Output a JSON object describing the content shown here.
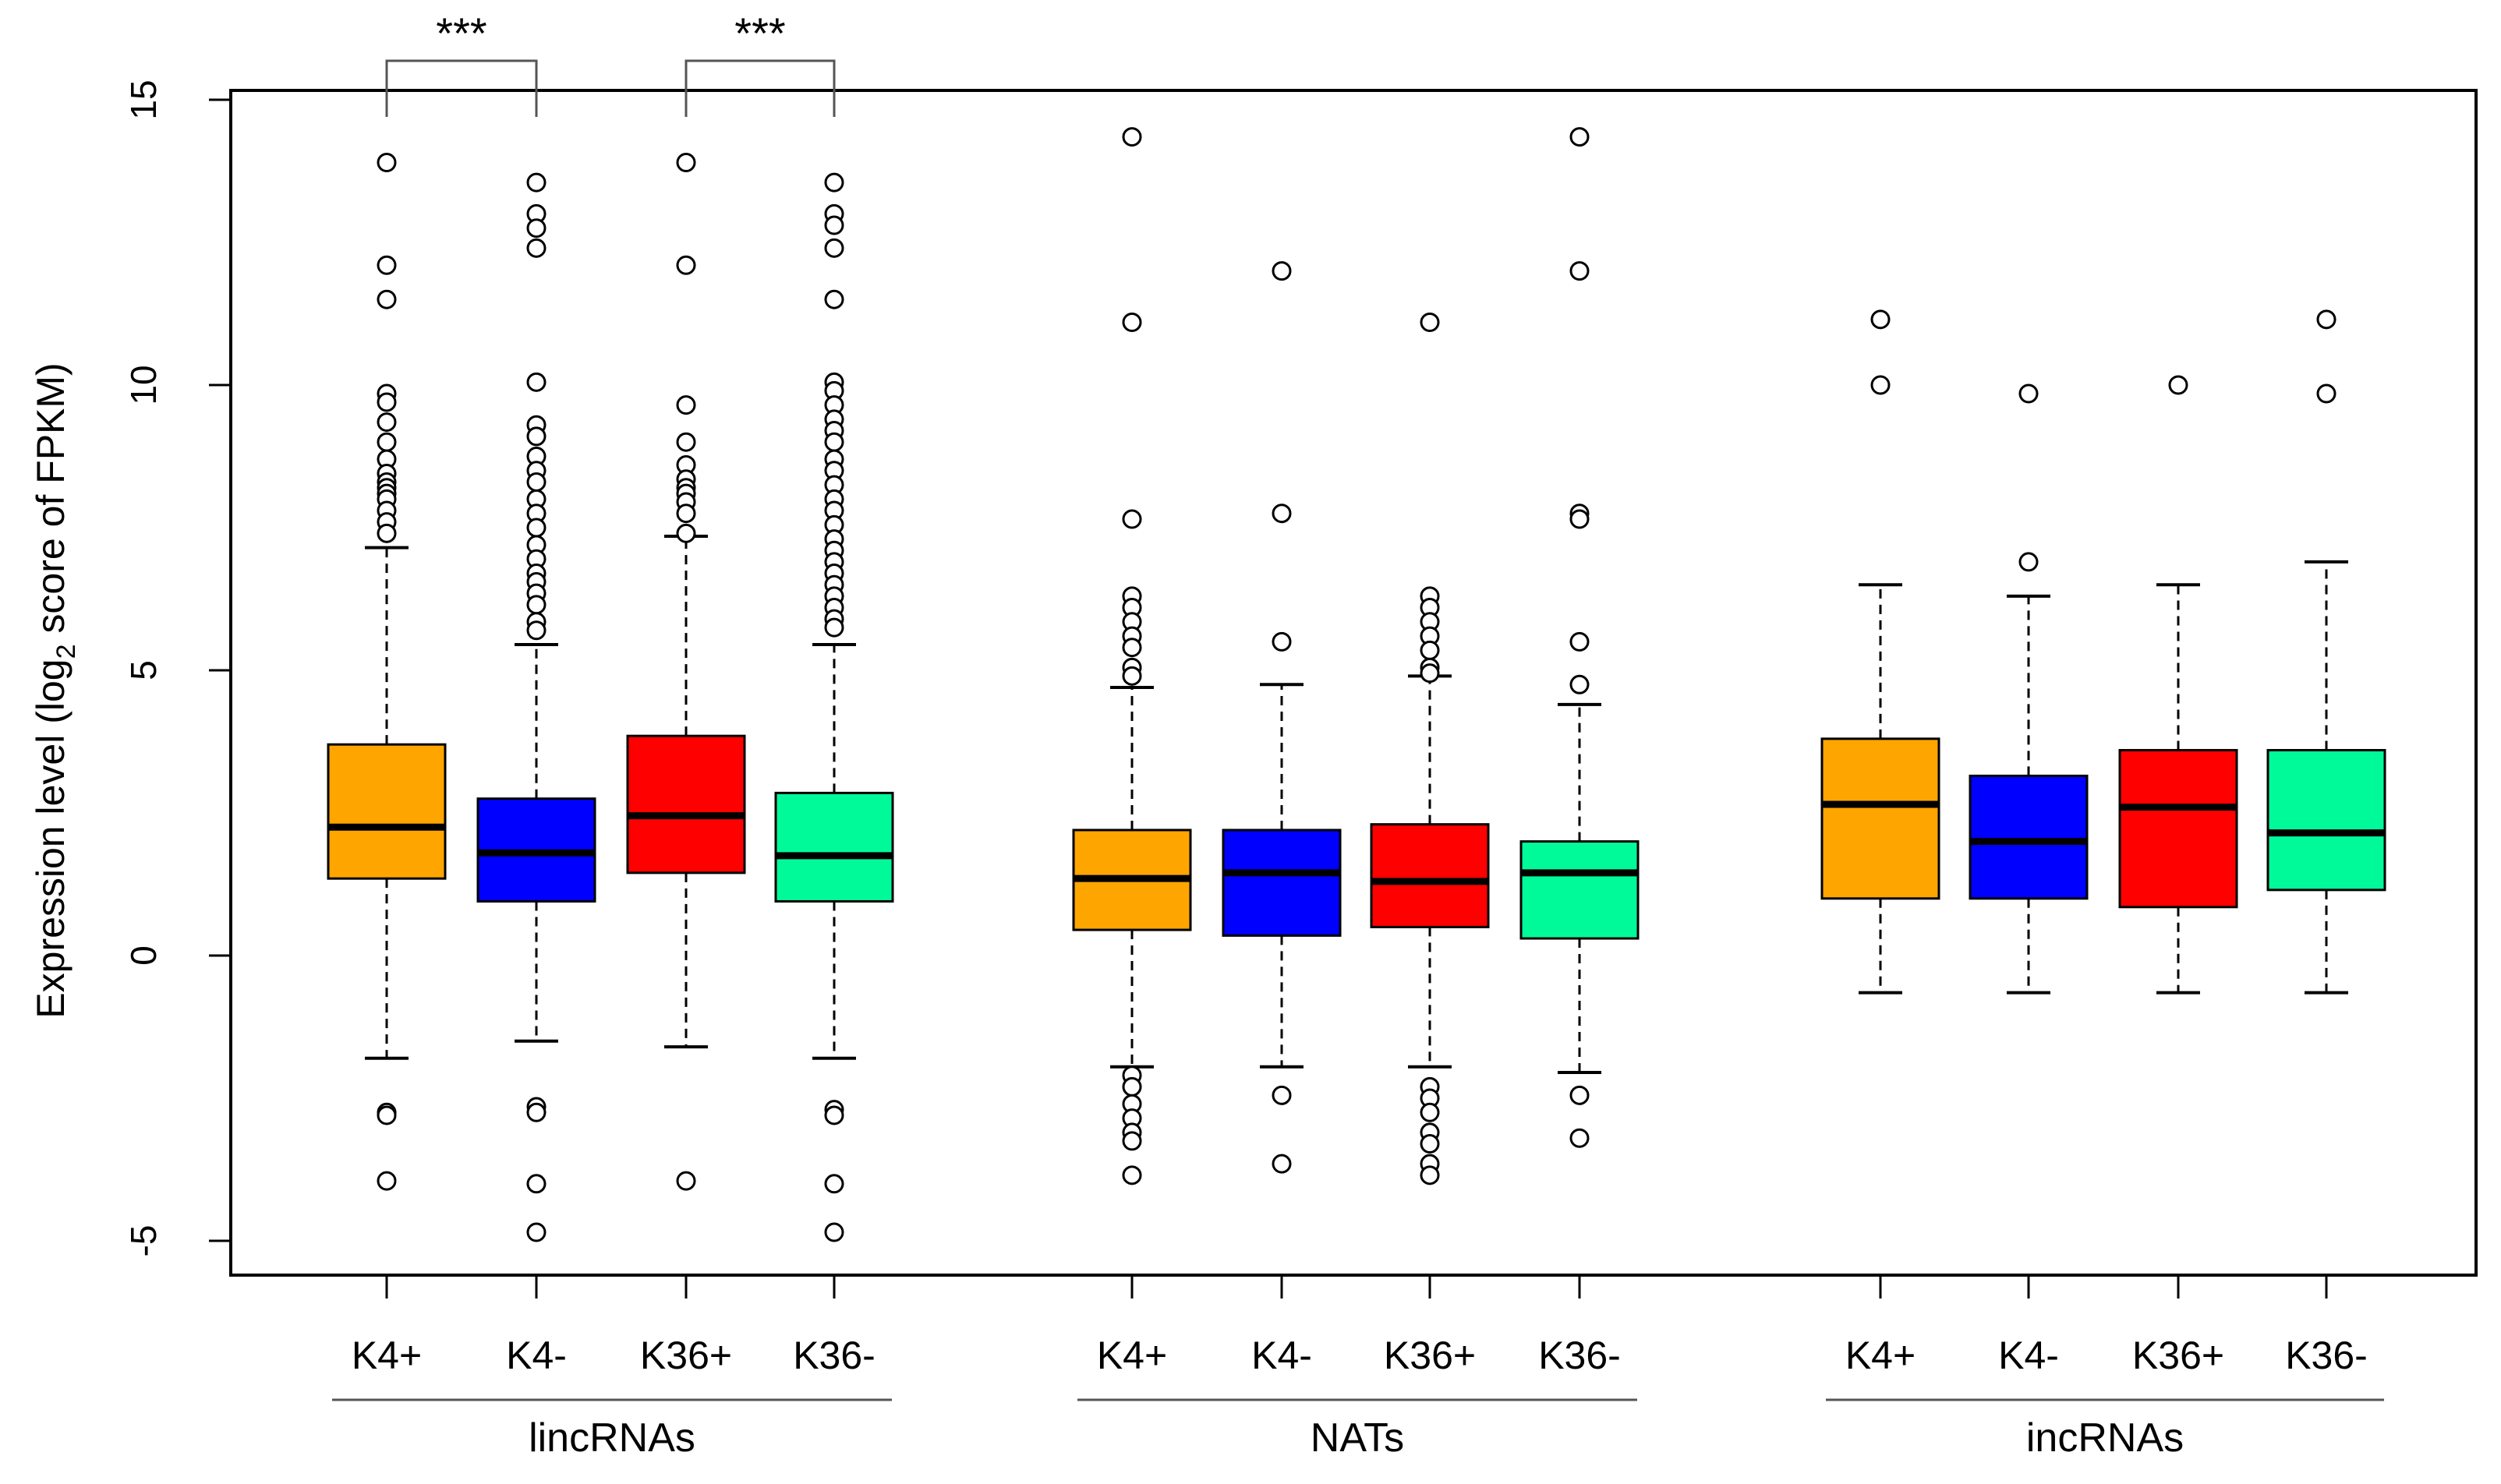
{
  "chart_data": {
    "type": "boxplot",
    "title": "",
    "ylabel_prefix": "Expression level (log",
    "ylabel_sub": "2",
    "ylabel_suffix": " score of FPKM)",
    "xlabel": "",
    "ylim": [
      -5.6,
      15.2
    ],
    "yticks": [
      -5,
      0,
      5,
      10,
      15
    ],
    "ytick_labels": [
      "-5",
      "0",
      "5",
      "10",
      "15"
    ],
    "grid": false,
    "colors": {
      "K4+": "#FFA500",
      "K4-": "#0000FF",
      "K36+": "#FF0000",
      "K36-": "#00FA9A"
    },
    "groups": [
      {
        "name": "lincRNAs",
        "boxes": [
          {
            "label": "K4+",
            "whisker_low": -1.8,
            "q1": 1.35,
            "median": 2.25,
            "q3": 3.7,
            "whisker_high": 7.15,
            "outliers": [
              13.9,
              12.1,
              11.5,
              9.85,
              9.7,
              9.35,
              9.0,
              8.7,
              8.45,
              8.3,
              8.2,
              8.1,
              8.0,
              7.8,
              7.6,
              7.4,
              -2.75,
              -2.8,
              -3.95
            ]
          },
          {
            "label": "K4-",
            "whisker_low": -1.5,
            "q1": 0.95,
            "median": 1.8,
            "q3": 2.75,
            "whisker_high": 5.45,
            "outliers": [
              13.55,
              13.0,
              12.75,
              12.4,
              10.05,
              9.3,
              9.1,
              8.75,
              8.5,
              8.3,
              8.0,
              7.75,
              7.5,
              7.2,
              6.95,
              6.7,
              6.55,
              6.35,
              6.15,
              5.85,
              5.7,
              -2.65,
              -2.75,
              -4.0,
              -4.85
            ]
          },
          {
            "label": "K36+",
            "whisker_low": -1.6,
            "q1": 1.45,
            "median": 2.45,
            "q3": 3.85,
            "whisker_high": 7.35,
            "outliers": [
              13.9,
              12.1,
              9.65,
              9.0,
              8.6,
              8.35,
              8.2,
              8.1,
              7.95,
              7.75,
              7.4,
              -3.95
            ]
          },
          {
            "label": "K36-",
            "whisker_low": -1.8,
            "q1": 0.95,
            "median": 1.75,
            "q3": 2.85,
            "whisker_high": 5.45,
            "outliers": [
              13.55,
              13.0,
              12.8,
              12.4,
              11.5,
              10.05,
              9.9,
              9.65,
              9.4,
              9.2,
              9.0,
              8.7,
              8.5,
              8.25,
              8.0,
              7.8,
              7.55,
              7.3,
              7.1,
              6.9,
              6.7,
              6.5,
              6.3,
              6.1,
              5.9,
              5.75,
              -2.7,
              -2.8,
              -4.0,
              -4.85
            ]
          }
        ]
      },
      {
        "name": "NATs",
        "boxes": [
          {
            "label": "K4+",
            "whisker_low": -1.95,
            "q1": 0.45,
            "median": 1.35,
            "q3": 2.2,
            "whisker_high": 4.7,
            "outliers": [
              14.35,
              11.1,
              7.65,
              6.3,
              6.1,
              5.85,
              5.6,
              5.4,
              5.05,
              4.9,
              -2.1,
              -2.3,
              -2.6,
              -2.85,
              -3.1,
              -3.25,
              -3.85
            ]
          },
          {
            "label": "K4-",
            "whisker_low": -1.95,
            "q1": 0.35,
            "median": 1.45,
            "q3": 2.2,
            "whisker_high": 4.75,
            "outliers": [
              12.0,
              7.75,
              5.5,
              -2.45,
              -3.65
            ]
          },
          {
            "label": "K36+",
            "whisker_low": -1.95,
            "q1": 0.5,
            "median": 1.3,
            "q3": 2.3,
            "whisker_high": 4.9,
            "outliers": [
              11.1,
              6.3,
              6.1,
              5.85,
              5.6,
              5.35,
              5.05,
              4.95,
              -2.3,
              -2.5,
              -2.75,
              -3.1,
              -3.3,
              -3.65,
              -3.85
            ]
          },
          {
            "label": "K36-",
            "whisker_low": -2.05,
            "q1": 0.3,
            "median": 1.45,
            "q3": 2.0,
            "whisker_high": 4.4,
            "outliers": [
              14.35,
              12.0,
              7.75,
              7.65,
              5.5,
              4.75,
              -2.45,
              -3.2
            ]
          }
        ]
      },
      {
        "name": "incRNAs",
        "boxes": [
          {
            "label": "K4+",
            "whisker_low": -0.65,
            "q1": 1.0,
            "median": 2.65,
            "q3": 3.8,
            "whisker_high": 6.5,
            "outliers": [
              11.15,
              10.0
            ]
          },
          {
            "label": "K4-",
            "whisker_low": -0.65,
            "q1": 1.0,
            "median": 2.0,
            "q3": 3.15,
            "whisker_high": 6.3,
            "outliers": [
              9.85,
              6.9
            ]
          },
          {
            "label": "K36+",
            "whisker_low": -0.65,
            "q1": 0.85,
            "median": 2.6,
            "q3": 3.6,
            "whisker_high": 6.5,
            "outliers": [
              10.0
            ]
          },
          {
            "label": "K36-",
            "whisker_low": -0.65,
            "q1": 1.15,
            "median": 2.15,
            "q3": 3.6,
            "whisker_high": 6.9,
            "outliers": [
              11.15,
              9.85
            ]
          }
        ]
      }
    ],
    "annotations": [
      {
        "text": "***",
        "from_group": 0,
        "from_box": 0,
        "to_box": 1,
        "level": 15.0
      },
      {
        "text": "***",
        "from_group": 0,
        "from_box": 2,
        "to_box": 3,
        "level": 15.0
      }
    ]
  }
}
